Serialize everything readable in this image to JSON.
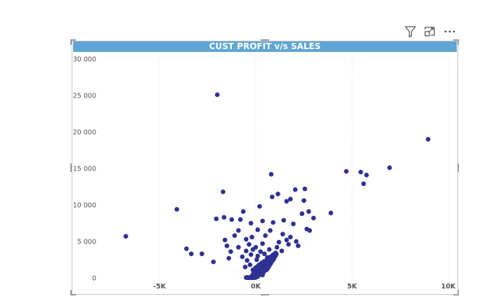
{
  "visual": {
    "title": "CUST PROFIT v/s SALES",
    "header_icons": [
      "filter-icon",
      "focus-mode-icon",
      "more-options-icon"
    ]
  },
  "colors": {
    "title_bar": "#5fa6d6",
    "point": "#2e3192",
    "frame": "#c8c8c8",
    "gridline": "#d8d8d8"
  },
  "chart_data": {
    "type": "scatter",
    "title": "CUST PROFIT v/s SALES",
    "xlim": [
      -10000,
      10000
    ],
    "ylim": [
      0,
      30000
    ],
    "x_ticks": [
      -5000,
      0,
      5000,
      10000
    ],
    "x_tick_labels": [
      "-5K",
      "0K",
      "5K",
      "10K"
    ],
    "y_ticks": [
      0,
      5000,
      10000,
      15000,
      20000,
      25000,
      30000
    ],
    "y_tick_labels": [
      "0",
      "5 000",
      "10 000",
      "15 000",
      "20 000",
      "25 000",
      "30 000"
    ],
    "grid": "vertical dotted",
    "points": [
      {
        "x": -2000,
        "y": 25100
      },
      {
        "x": 8950,
        "y": 19000
      },
      {
        "x": 6950,
        "y": 15100
      },
      {
        "x": 4700,
        "y": 14600
      },
      {
        "x": 5450,
        "y": 14500
      },
      {
        "x": 5750,
        "y": 14100
      },
      {
        "x": 5600,
        "y": 12900
      },
      {
        "x": 800,
        "y": 14200
      },
      {
        "x": -1700,
        "y": 11800
      },
      {
        "x": -4100,
        "y": 9400
      },
      {
        "x": 3900,
        "y": 8900
      },
      {
        "x": -6750,
        "y": 5700
      },
      {
        "x": -3600,
        "y": 4000
      },
      {
        "x": -3350,
        "y": 3300
      },
      {
        "x": -2800,
        "y": 3300
      },
      {
        "x": -2200,
        "y": 2200
      },
      {
        "x": -2050,
        "y": 8100
      },
      {
        "x": -1650,
        "y": 8300
      },
      {
        "x": -650,
        "y": 9100
      },
      {
        "x": 200,
        "y": 9800
      },
      {
        "x": 2050,
        "y": 12100
      },
      {
        "x": 2550,
        "y": 12200
      },
      {
        "x": 1150,
        "y": 11500
      },
      {
        "x": 850,
        "y": 11100
      },
      {
        "x": 1800,
        "y": 10800
      },
      {
        "x": 1600,
        "y": 10500
      },
      {
        "x": 2500,
        "y": 10600
      },
      {
        "x": 2750,
        "y": 9100
      },
      {
        "x": 2400,
        "y": 8800
      },
      {
        "x": 3000,
        "y": 8200
      },
      {
        "x": 2650,
        "y": 6700
      },
      {
        "x": 2800,
        "y": 6500
      },
      {
        "x": -1250,
        "y": 8000
      },
      {
        "x": -800,
        "y": 8000
      },
      {
        "x": -250,
        "y": 7500
      },
      {
        "x": 350,
        "y": 7800
      },
      {
        "x": 900,
        "y": 7600
      },
      {
        "x": 1450,
        "y": 7900
      },
      {
        "x": 1950,
        "y": 7400
      },
      {
        "x": -900,
        "y": 6500
      },
      {
        "x": -1100,
        "y": 5800
      },
      {
        "x": -1600,
        "y": 5200
      },
      {
        "x": -500,
        "y": 5300
      },
      {
        "x": -1500,
        "y": 4400
      },
      {
        "x": -900,
        "y": 4200
      },
      {
        "x": -1300,
        "y": 3600
      },
      {
        "x": -1400,
        "y": 2700
      },
      {
        "x": 1400,
        "y": 6000
      },
      {
        "x": 1800,
        "y": 5600
      },
      {
        "x": 2100,
        "y": 5000
      },
      {
        "x": 2200,
        "y": 4400
      },
      {
        "x": 1700,
        "y": 4600
      },
      {
        "x": 1200,
        "y": 4900
      },
      {
        "x": 750,
        "y": 6500
      },
      {
        "x": 500,
        "y": 5800
      },
      {
        "x": 100,
        "y": 6600
      },
      {
        "x": -200,
        "y": 5600
      },
      {
        "x": 350,
        "y": 4700
      },
      {
        "x": -350,
        "y": 4600
      },
      {
        "x": -150,
        "y": 3900
      },
      {
        "x": 250,
        "y": 3600
      },
      {
        "x": 700,
        "y": 3900
      },
      {
        "x": 1000,
        "y": 3300
      },
      {
        "x": 1350,
        "y": 3700
      },
      {
        "x": 600,
        "y": 2800
      },
      {
        "x": -700,
        "y": 2900
      },
      {
        "x": -450,
        "y": 2400
      },
      {
        "x": 50,
        "y": 2500
      },
      {
        "x": 400,
        "y": 2200
      },
      {
        "x": -300,
        "y": 1800
      },
      {
        "x": 150,
        "y": 1500
      },
      {
        "x": 500,
        "y": 1300
      },
      {
        "x": -150,
        "y": 1100
      },
      {
        "x": 250,
        "y": 800
      },
      {
        "x": -50,
        "y": 600
      },
      {
        "x": 350,
        "y": 400
      },
      {
        "x": 700,
        "y": 1800
      },
      {
        "x": -550,
        "y": 1500
      },
      {
        "x": 100,
        "y": 3000
      },
      {
        "x": -250,
        "y": 3200
      },
      {
        "x": 450,
        "y": 3300
      },
      {
        "x": 900,
        "y": 2500
      },
      {
        "x": -500,
        "y": 3700
      },
      {
        "x": 0,
        "y": 4200
      },
      {
        "x": 1100,
        "y": 4200
      },
      {
        "x": 1600,
        "y": 5200
      }
    ]
  }
}
